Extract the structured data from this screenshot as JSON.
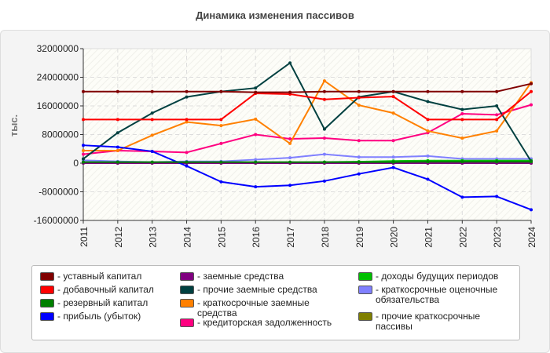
{
  "chart_data": {
    "type": "line",
    "title": "Динамика изменения пассивов",
    "ylabel": "тыс.",
    "ylim": [
      -16000000,
      32000000
    ],
    "yticks": [
      -16000000,
      -8000000,
      0,
      8000000,
      16000000,
      24000000,
      32000000
    ],
    "ytick_labels": [
      "-16000000",
      "-8000000",
      "0",
      "8000000",
      "16000000",
      "24000000",
      "32000000"
    ],
    "grid": true,
    "legend_position": "bottom",
    "categories": [
      "2011",
      "2012",
      "2013",
      "2014",
      "2015",
      "2016",
      "2017",
      "2018",
      "2019",
      "2020",
      "2021",
      "2022",
      "2023",
      "2024"
    ],
    "series": [
      {
        "name": "- уставный капитал",
        "color": "#800000",
        "values": [
          20000000,
          20000000,
          20000000,
          20000000,
          20000000,
          19800000,
          19800000,
          20000000,
          20000000,
          20000000,
          20000000,
          20000000,
          20000000,
          22200000
        ]
      },
      {
        "name": "- добавочный капитал",
        "color": "#ff0000",
        "values": [
          12200000,
          12200000,
          12200000,
          12200000,
          12200000,
          19500000,
          19300000,
          17800000,
          18300000,
          18600000,
          12200000,
          12200000,
          12200000,
          20000000
        ]
      },
      {
        "name": "- резервный капитал",
        "color": "#008000",
        "values": [
          300000,
          300000,
          300000,
          300000,
          300000,
          300000,
          300000,
          300000,
          300000,
          300000,
          400000,
          400000,
          400000,
          400000
        ]
      },
      {
        "name": "- прибыль (убыток)",
        "color": "#0000ff",
        "values": [
          5000000,
          4500000,
          3300000,
          -800000,
          -5200000,
          -6600000,
          -6200000,
          -5000000,
          -3000000,
          -1200000,
          -4500000,
          -9500000,
          -9300000,
          -13000000
        ]
      },
      {
        "name": "- заемные средства",
        "color": "#800080",
        "values": [
          0,
          0,
          0,
          0,
          0,
          0,
          0,
          0,
          0,
          0,
          0,
          0,
          0,
          0
        ]
      },
      {
        "name": "- прочие заемные средства",
        "color": "#004040",
        "values": [
          1200000,
          8500000,
          14000000,
          18500000,
          20000000,
          21000000,
          28000000,
          9500000,
          18500000,
          20000000,
          17200000,
          15000000,
          16000000,
          500000
        ]
      },
      {
        "name": "- краткосрочные заемные средства",
        "color": "#ff8000",
        "values": [
          3500000,
          3500000,
          7800000,
          11500000,
          10500000,
          12300000,
          5500000,
          23000000,
          16200000,
          14000000,
          9000000,
          7000000,
          9000000,
          22500000
        ]
      },
      {
        "name": "- кредиторская задолженность",
        "color": "#ff0080",
        "values": [
          2500000,
          3500000,
          3300000,
          3000000,
          5500000,
          8000000,
          6800000,
          7000000,
          6300000,
          6300000,
          8500000,
          13800000,
          13500000,
          16300000
        ]
      },
      {
        "name": "- доходы будущих периодов",
        "color": "#00c000",
        "values": [
          200000,
          200000,
          200000,
          200000,
          200000,
          200000,
          200000,
          300000,
          400000,
          600000,
          700000,
          700000,
          700000,
          700000
        ]
      },
      {
        "name": "- краткосрочные оценочные обязательства",
        "color": "#8080ff",
        "values": [
          800000,
          500000,
          300000,
          500000,
          500000,
          1000000,
          1500000,
          2500000,
          1700000,
          1700000,
          2000000,
          1200000,
          1200000,
          1200000
        ]
      },
      {
        "name": "- прочие краткосрочные пассивы",
        "color": "#808000",
        "values": [
          0,
          0,
          0,
          0,
          0,
          0,
          0,
          0,
          0,
          0,
          0,
          0,
          0,
          0
        ]
      }
    ]
  }
}
